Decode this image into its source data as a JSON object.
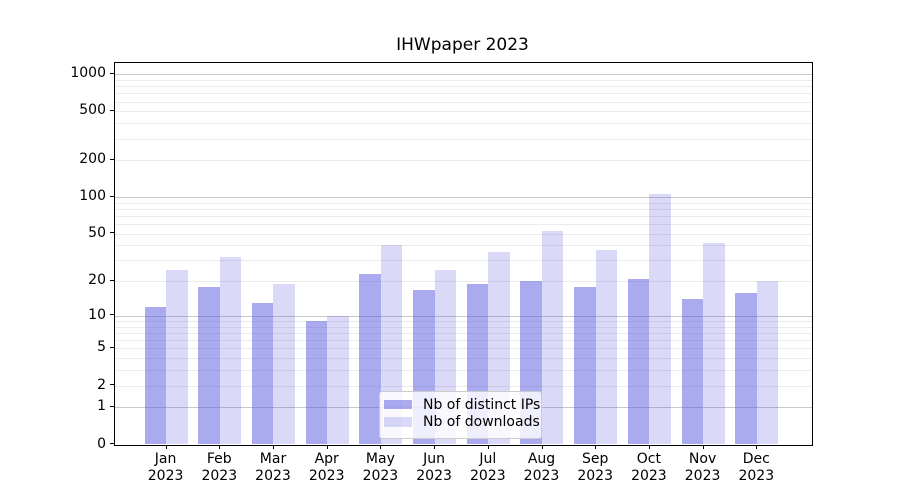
{
  "chart_data": {
    "type": "bar",
    "title": "IHWpaper 2023",
    "x": [
      "Jan",
      "Feb",
      "Mar",
      "Apr",
      "May",
      "Jun",
      "Jul",
      "Aug",
      "Sep",
      "Oct",
      "Nov",
      "Dec"
    ],
    "x_year": "2023",
    "series": [
      {
        "name": "Nb of distinct IPs",
        "color": "rgba(85,85,221,0.5)",
        "values": [
          12,
          18,
          13,
          9,
          23,
          17,
          19,
          20,
          18,
          21,
          14,
          16
        ]
      },
      {
        "name": "Nb of downloads",
        "color": "rgba(85,85,221,0.22)",
        "values": [
          25,
          32,
          19,
          10,
          40,
          25,
          35,
          53,
          37,
          107,
          42,
          20
        ]
      }
    ],
    "yscale": "log1p",
    "ytick_values": [
      0,
      1,
      2,
      5,
      10,
      20,
      50,
      100,
      200,
      500,
      1000
    ],
    "ytick_labels": [
      "0",
      "1",
      "2",
      "5",
      "10",
      "20",
      "50",
      "100",
      "200",
      "500",
      "1000"
    ],
    "ylim": [
      0,
      1220
    ],
    "grid": "on",
    "legend_position": "lower center",
    "colors": {
      "bar_base": "#5555dd",
      "major_grid": "#c8c8c8",
      "minor_grid": "#ebebeb",
      "axis": "#000000",
      "legend_border": "#cccccc",
      "background": "#ffffff"
    }
  }
}
